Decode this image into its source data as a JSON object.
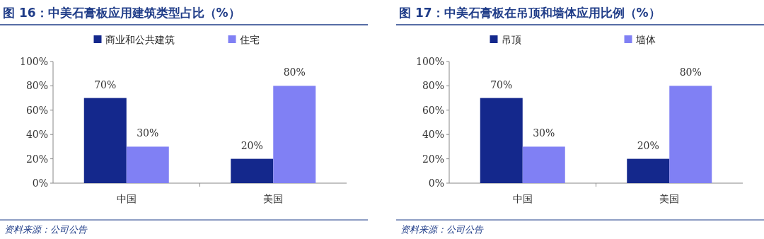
{
  "chart_data": [
    {
      "type": "bar",
      "title": "图 16：中美石膏板应用建筑类型占比（%）",
      "categories": [
        "中国",
        "美国"
      ],
      "series": [
        {
          "name": "商业和公共建筑",
          "color": "#14288c",
          "values": [
            70,
            20
          ],
          "value_labels": [
            "70%",
            "20%"
          ]
        },
        {
          "name": "住宅",
          "color": "#8080f4",
          "values": [
            30,
            80
          ],
          "value_labels": [
            "30%",
            "80%"
          ]
        }
      ],
      "ylim": [
        0,
        100
      ],
      "yticks": [
        {
          "value": 0,
          "label": "0%"
        },
        {
          "value": 20,
          "label": "20%"
        },
        {
          "value": 40,
          "label": "40%"
        },
        {
          "value": 60,
          "label": "60%"
        },
        {
          "value": 80,
          "label": "80%"
        },
        {
          "value": 100,
          "label": "100%"
        }
      ],
      "grid": false,
      "legend": "top",
      "annotations": [
        "资料来源：公司公告"
      ]
    },
    {
      "type": "bar",
      "title": "图 17：中美石膏板在吊顶和墙体应用比例（%）",
      "categories": [
        "中国",
        "美国"
      ],
      "series": [
        {
          "name": "吊顶",
          "color": "#14288c",
          "values": [
            70,
            20
          ],
          "value_labels": [
            "70%",
            "20%"
          ]
        },
        {
          "name": "墙体",
          "color": "#8080f4",
          "values": [
            30,
            80
          ],
          "value_labels": [
            "30%",
            "80%"
          ]
        }
      ],
      "ylim": [
        0,
        100
      ],
      "yticks": [
        {
          "value": 0,
          "label": "0%"
        },
        {
          "value": 20,
          "label": "20%"
        },
        {
          "value": 40,
          "label": "40%"
        },
        {
          "value": 60,
          "label": "60%"
        },
        {
          "value": 80,
          "label": "80%"
        },
        {
          "value": 100,
          "label": "100%"
        }
      ],
      "grid": false,
      "legend": "top",
      "annotations": [
        "资料来源：公司公告"
      ]
    }
  ]
}
